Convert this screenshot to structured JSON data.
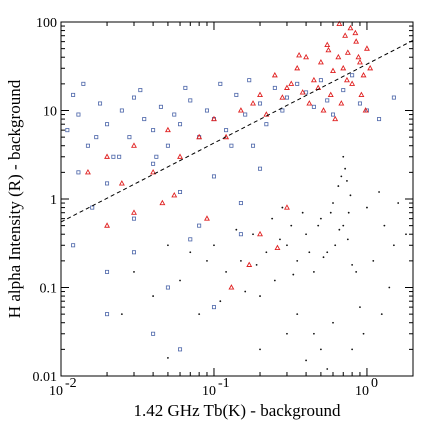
{
  "chart_data": {
    "type": "scatter",
    "title": "",
    "xlabel": "1.42 GHz Tb(K) - background",
    "ylabel": "H alpha Intensity (R) - background",
    "x_scale": "log",
    "y_scale": "log",
    "xlim": [
      0.01,
      2
    ],
    "ylim": [
      0.01,
      100
    ],
    "grid": false,
    "legend": "none",
    "x_ticks": [
      {
        "value": 0.01,
        "label": "10"
      },
      {
        "value": 0.1,
        "label": "10"
      },
      {
        "value": 1,
        "label": "10"
      }
    ],
    "x_tick_exponents": [
      "-2",
      "-1",
      "0"
    ],
    "y_ticks": [
      {
        "value": 0.01,
        "label": "0.01"
      },
      {
        "value": 0.1,
        "label": "0.1"
      },
      {
        "value": 1,
        "label": "1"
      },
      {
        "value": 10,
        "label": "10"
      },
      {
        "value": 100,
        "label": "100"
      }
    ],
    "fit_line": {
      "style": "dashed",
      "color": "#000000",
      "points": [
        [
          0.01,
          0.55
        ],
        [
          2,
          62
        ]
      ]
    },
    "series": [
      {
        "marker": "dot",
        "color": "#111111",
        "points": [
          [
            0.3,
            0.3
          ],
          [
            0.32,
            0.5
          ],
          [
            0.35,
            0.2
          ],
          [
            0.4,
            0.4
          ],
          [
            0.45,
            0.15
          ],
          [
            0.5,
            0.6
          ],
          [
            0.55,
            0.25
          ],
          [
            0.6,
            0.9
          ],
          [
            0.65,
            1.4
          ],
          [
            0.7,
            0.5
          ],
          [
            0.72,
            2.2
          ],
          [
            0.75,
            0.35
          ],
          [
            0.78,
            1.1
          ],
          [
            0.8,
            0.18
          ],
          [
            0.22,
            0.25
          ],
          [
            0.25,
            0.12
          ],
          [
            0.28,
            0.8
          ],
          [
            0.18,
            0.4
          ],
          [
            0.2,
            0.08
          ],
          [
            0.15,
            0.2
          ],
          [
            0.12,
            0.15
          ],
          [
            0.1,
            0.3
          ],
          [
            0.08,
            0.05
          ],
          [
            0.06,
            0.12
          ],
          [
            0.05,
            0.3
          ],
          [
            0.04,
            0.08
          ],
          [
            0.03,
            0.15
          ],
          [
            0.025,
            0.05
          ],
          [
            0.35,
            0.05
          ],
          [
            0.45,
            0.03
          ],
          [
            0.6,
            0.04
          ],
          [
            0.9,
            0.06
          ],
          [
            1.1,
            0.2
          ],
          [
            1.3,
            0.5
          ],
          [
            1.5,
            0.3
          ],
          [
            1.2,
            1.2
          ],
          [
            1.0,
            0.8
          ],
          [
            0.85,
            0.15
          ],
          [
            0.5,
            0.02
          ],
          [
            0.3,
            0.03
          ],
          [
            0.7,
            3.0
          ],
          [
            0.68,
            1.8
          ],
          [
            0.74,
            1.6
          ],
          [
            0.76,
            0.7
          ],
          [
            0.66,
            0.45
          ],
          [
            0.62,
            0.3
          ],
          [
            0.58,
            0.7
          ],
          [
            0.52,
            0.22
          ],
          [
            0.48,
            0.5
          ],
          [
            0.42,
            0.25
          ],
          [
            0.38,
            0.7
          ],
          [
            0.33,
            0.14
          ],
          [
            0.27,
            0.35
          ],
          [
            0.24,
            0.6
          ],
          [
            0.19,
            0.18
          ],
          [
            0.16,
            0.09
          ],
          [
            0.14,
            0.45
          ],
          [
            0.11,
            0.07
          ],
          [
            0.09,
            0.2
          ],
          [
            0.07,
            0.25
          ],
          [
            1.6,
            0.9
          ],
          [
            1.8,
            0.4
          ],
          [
            1.4,
            0.1
          ],
          [
            1.25,
            0.05
          ],
          [
            0.95,
            0.03
          ],
          [
            0.8,
            0.02
          ],
          [
            0.55,
            0.012
          ],
          [
            0.4,
            0.015
          ],
          [
            0.2,
            0.02
          ],
          [
            0.05,
            0.016
          ]
        ]
      },
      {
        "marker": "open-square",
        "color": "#4a64a8",
        "points": [
          [
            0.011,
            6
          ],
          [
            0.013,
            9
          ],
          [
            0.015,
            4
          ],
          [
            0.018,
            12
          ],
          [
            0.02,
            7
          ],
          [
            0.022,
            3
          ],
          [
            0.025,
            10
          ],
          [
            0.028,
            5
          ],
          [
            0.03,
            14
          ],
          [
            0.035,
            8
          ],
          [
            0.04,
            6
          ],
          [
            0.045,
            11
          ],
          [
            0.05,
            4
          ],
          [
            0.055,
            9
          ],
          [
            0.06,
            7
          ],
          [
            0.07,
            13
          ],
          [
            0.08,
            5
          ],
          [
            0.09,
            10
          ],
          [
            0.1,
            8
          ],
          [
            0.12,
            6
          ],
          [
            0.14,
            15
          ],
          [
            0.16,
            9
          ],
          [
            0.18,
            4
          ],
          [
            0.2,
            12
          ],
          [
            0.22,
            7
          ],
          [
            0.25,
            18
          ],
          [
            0.28,
            10
          ],
          [
            0.3,
            14
          ],
          [
            0.35,
            20
          ],
          [
            0.4,
            16
          ],
          [
            0.45,
            11
          ],
          [
            0.5,
            22
          ],
          [
            0.55,
            13
          ],
          [
            0.6,
            9
          ],
          [
            0.7,
            17
          ],
          [
            0.8,
            25
          ],
          [
            0.9,
            12
          ],
          [
            1.0,
            10
          ],
          [
            1.2,
            8
          ],
          [
            1.5,
            14
          ],
          [
            0.013,
            2
          ],
          [
            0.016,
            0.8
          ],
          [
            0.02,
            1.5
          ],
          [
            0.03,
            0.6
          ],
          [
            0.04,
            2.5
          ],
          [
            0.06,
            1.2
          ],
          [
            0.08,
            0.5
          ],
          [
            0.1,
            1.8
          ],
          [
            0.15,
            0.9
          ],
          [
            0.2,
            2.2
          ],
          [
            0.012,
            0.3
          ],
          [
            0.02,
            0.15
          ],
          [
            0.03,
            0.25
          ],
          [
            0.05,
            0.1
          ],
          [
            0.07,
            0.35
          ],
          [
            0.1,
            0.06
          ],
          [
            0.15,
            0.4
          ],
          [
            0.02,
            0.05
          ],
          [
            0.04,
            0.03
          ],
          [
            0.06,
            0.02
          ],
          [
            0.012,
            15
          ],
          [
            0.014,
            20
          ],
          [
            0.017,
            5
          ],
          [
            0.024,
            3
          ],
          [
            0.033,
            17
          ],
          [
            0.042,
            3
          ],
          [
            0.065,
            18
          ],
          [
            0.11,
            20
          ],
          [
            0.13,
            4
          ],
          [
            0.17,
            22
          ]
        ]
      },
      {
        "marker": "triangle",
        "color": "#e02020",
        "points": [
          [
            0.7,
            30
          ],
          [
            0.75,
            45
          ],
          [
            0.8,
            20
          ],
          [
            0.85,
            60
          ],
          [
            0.9,
            35
          ],
          [
            0.95,
            25
          ],
          [
            1.0,
            50
          ],
          [
            0.65,
            40
          ],
          [
            0.6,
            28
          ],
          [
            0.55,
            55
          ],
          [
            0.5,
            35
          ],
          [
            0.45,
            22
          ],
          [
            0.4,
            40
          ],
          [
            0.35,
            30
          ],
          [
            0.3,
            18
          ],
          [
            0.25,
            25
          ],
          [
            0.2,
            15
          ],
          [
            0.15,
            10
          ],
          [
            0.1,
            8
          ],
          [
            0.08,
            5
          ],
          [
            0.06,
            3
          ],
          [
            0.05,
            6
          ],
          [
            0.04,
            2
          ],
          [
            0.03,
            4
          ],
          [
            0.025,
            1.5
          ],
          [
            0.02,
            3
          ],
          [
            0.015,
            2
          ],
          [
            0.12,
            5
          ],
          [
            0.18,
            12
          ],
          [
            0.22,
            9
          ],
          [
            0.28,
            14
          ],
          [
            0.32,
            20
          ],
          [
            0.38,
            16
          ],
          [
            0.42,
            12
          ],
          [
            0.48,
            18
          ],
          [
            0.52,
            10
          ],
          [
            0.58,
            15
          ],
          [
            0.62,
            8
          ],
          [
            0.68,
            12
          ],
          [
            0.72,
            70
          ],
          [
            0.78,
            85
          ],
          [
            0.88,
            40
          ],
          [
            0.92,
            15
          ],
          [
            0.98,
            10
          ],
          [
            1.05,
            30
          ],
          [
            0.66,
            95
          ],
          [
            0.84,
            75
          ],
          [
            0.74,
            22
          ],
          [
            0.56,
            48
          ],
          [
            0.36,
            42
          ],
          [
            0.13,
            0.1
          ],
          [
            0.2,
            0.4
          ],
          [
            0.3,
            0.8
          ],
          [
            0.17,
            0.18
          ],
          [
            0.26,
            0.28
          ],
          [
            0.09,
            0.6
          ],
          [
            0.055,
            1.1
          ],
          [
            0.03,
            0.7
          ],
          [
            0.046,
            0.9
          ],
          [
            0.02,
            0.5
          ]
        ]
      }
    ]
  }
}
